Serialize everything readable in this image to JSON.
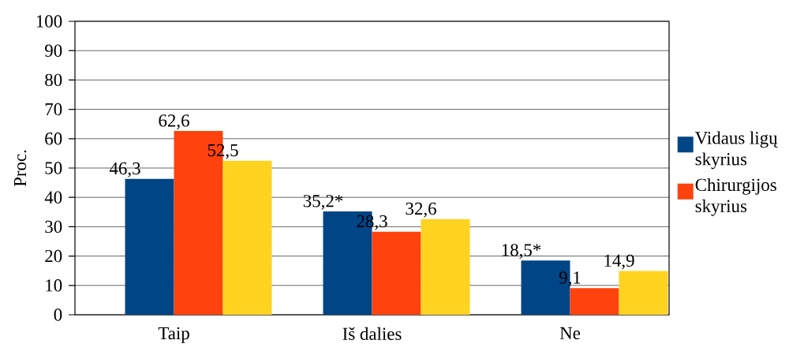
{
  "chart_data": {
    "type": "bar",
    "ylabel": "Proc.",
    "categories": [
      "Taip",
      "Iš dalies",
      "Ne"
    ],
    "series": [
      {
        "name": "Vidaus ligų skyrius",
        "color": "#004586",
        "values": [
          46.3,
          35.2,
          18.5
        ],
        "value_labels": [
          "46,3",
          "35,2*",
          "18,5*"
        ]
      },
      {
        "name": "Chirurgijos skyrius",
        "color": "#ff420e",
        "values": [
          62.6,
          28.3,
          9.1
        ],
        "value_labels": [
          "62,6",
          "28,3",
          "9,1"
        ]
      },
      {
        "color": "#ffd320",
        "values": [
          52.5,
          32.6,
          14.9
        ],
        "value_labels": [
          "52,5",
          "32,6",
          "14,9"
        ]
      }
    ],
    "ylim": [
      0,
      100
    ],
    "yticks": [
      0,
      10,
      20,
      30,
      40,
      50,
      60,
      70,
      80,
      90,
      100
    ],
    "grid": "y",
    "legend": "right"
  }
}
